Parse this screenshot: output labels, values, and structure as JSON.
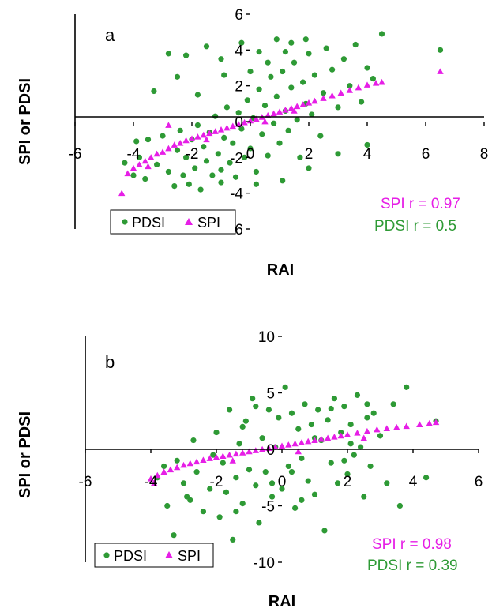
{
  "colors": {
    "pdsi": "#2e9a35",
    "spi": "#e61ee6",
    "axis": "#000000"
  },
  "chart_data": [
    {
      "type": "scatter",
      "panel_label": "a",
      "xlabel": "RAI",
      "ylabel": "SPI or PDSI",
      "xlim": [
        -6,
        8
      ],
      "ylim": [
        -6,
        6
      ],
      "xticks": [
        -6,
        -4,
        -2,
        0,
        2,
        4,
        6,
        8
      ],
      "yticks": [
        -6,
        -4,
        -2,
        0,
        2,
        4,
        6
      ],
      "legend": {
        "position": "bottom-left",
        "entries": [
          "PDSI",
          "SPI"
        ]
      },
      "annotations": [
        "SPI r = 0.97",
        "PDSI r = 0.5"
      ],
      "series": [
        {
          "name": "PDSI",
          "marker": "circle",
          "points": [
            [
              -4.3,
              -2.3
            ],
            [
              -4.0,
              -3.0
            ],
            [
              -3.6,
              -3.2
            ],
            [
              -3.5,
              -1.0
            ],
            [
              -3.2,
              -2.4
            ],
            [
              -3.0,
              -0.8
            ],
            [
              -2.8,
              -2.8
            ],
            [
              -2.6,
              -3.6
            ],
            [
              -2.5,
              -1.6
            ],
            [
              -2.4,
              -0.5
            ],
            [
              -2.3,
              -3.0
            ],
            [
              -2.2,
              -2.0
            ],
            [
              -2.1,
              -3.5
            ],
            [
              -2.0,
              -1.0
            ],
            [
              -1.9,
              -2.6
            ],
            [
              -1.8,
              -0.2
            ],
            [
              -1.7,
              -3.8
            ],
            [
              -1.6,
              -1.4
            ],
            [
              -1.5,
              -2.2
            ],
            [
              -1.4,
              -0.6
            ],
            [
              -1.3,
              -3.0
            ],
            [
              -1.2,
              0.3
            ],
            [
              -1.1,
              -1.8
            ],
            [
              -1.0,
              -2.7
            ],
            [
              -0.9,
              -0.9
            ],
            [
              -0.8,
              0.8
            ],
            [
              -0.7,
              -2.3
            ],
            [
              -0.6,
              -1.2
            ],
            [
              -0.5,
              -3.1
            ],
            [
              -0.4,
              0.5
            ],
            [
              -0.3,
              -0.4
            ],
            [
              -0.2,
              -2.0
            ],
            [
              -0.1,
              1.2
            ],
            [
              0.0,
              -1.5
            ],
            [
              0.1,
              0.2
            ],
            [
              0.2,
              -2.8
            ],
            [
              0.3,
              1.8
            ],
            [
              0.4,
              -0.7
            ],
            [
              0.5,
              0.9
            ],
            [
              0.6,
              -1.9
            ],
            [
              0.7,
              2.5
            ],
            [
              0.8,
              -0.1
            ],
            [
              0.9,
              1.4
            ],
            [
              1.0,
              -1.2
            ],
            [
              1.1,
              2.8
            ],
            [
              1.2,
              0.6
            ],
            [
              1.3,
              -0.5
            ],
            [
              1.4,
              1.9
            ],
            [
              1.5,
              3.3
            ],
            [
              1.6,
              0.1
            ],
            [
              1.7,
              -2.0
            ],
            [
              1.8,
              2.2
            ],
            [
              1.9,
              1.0
            ],
            [
              2.0,
              3.8
            ],
            [
              2.1,
              0.4
            ],
            [
              2.2,
              2.6
            ],
            [
              2.4,
              -0.8
            ],
            [
              2.5,
              1.6
            ],
            [
              2.6,
              4.1
            ],
            [
              2.8,
              2.9
            ],
            [
              3.0,
              0.8
            ],
            [
              3.2,
              3.5
            ],
            [
              3.4,
              2.0
            ],
            [
              3.6,
              4.3
            ],
            [
              3.8,
              1.1
            ],
            [
              4.0,
              3.0
            ],
            [
              4.2,
              2.4
            ],
            [
              4.5,
              4.9
            ],
            [
              -3.3,
              1.7
            ],
            [
              -2.8,
              3.8
            ],
            [
              -2.2,
              3.7
            ],
            [
              -1.5,
              4.2
            ],
            [
              -1.0,
              3.5
            ],
            [
              -0.3,
              4.4
            ],
            [
              0.3,
              3.9
            ],
            [
              0.9,
              4.6
            ],
            [
              1.4,
              4.4
            ],
            [
              1.9,
              4.6
            ],
            [
              -2.5,
              2.5
            ],
            [
              -1.8,
              1.5
            ],
            [
              -0.9,
              2.6
            ],
            [
              0.0,
              2.8
            ],
            [
              0.6,
              3.3
            ],
            [
              1.2,
              3.9
            ],
            [
              -3.8,
              -2.0
            ],
            [
              -3.9,
              -1.1
            ],
            [
              -1.0,
              -3.4
            ],
            [
              0.2,
              -3.5
            ],
            [
              1.1,
              -3.3
            ],
            [
              2.0,
              -2.6
            ],
            [
              3.0,
              -1.8
            ],
            [
              4.0,
              -1.3
            ],
            [
              6.5,
              4.0
            ]
          ]
        },
        {
          "name": "SPI",
          "marker": "triangle",
          "points": [
            [
              -4.4,
              -4.0
            ],
            [
              -4.2,
              -2.9
            ],
            [
              -4.0,
              -2.6
            ],
            [
              -3.8,
              -2.4
            ],
            [
              -3.6,
              -2.2
            ],
            [
              -3.4,
              -2.0
            ],
            [
              -3.2,
              -1.8
            ],
            [
              -3.0,
              -1.7
            ],
            [
              -2.8,
              -1.5
            ],
            [
              -2.6,
              -1.3
            ],
            [
              -2.4,
              -1.2
            ],
            [
              -2.2,
              -1.05
            ],
            [
              -2.0,
              -0.95
            ],
            [
              -1.8,
              -0.85
            ],
            [
              -1.6,
              -0.75
            ],
            [
              -1.4,
              -0.65
            ],
            [
              -1.2,
              -0.55
            ],
            [
              -1.0,
              -0.45
            ],
            [
              -0.8,
              -0.35
            ],
            [
              -0.6,
              -0.25
            ],
            [
              -0.4,
              -0.15
            ],
            [
              -0.2,
              -0.05
            ],
            [
              0.0,
              0.05
            ],
            [
              0.2,
              0.15
            ],
            [
              0.4,
              0.25
            ],
            [
              0.6,
              0.35
            ],
            [
              0.8,
              0.45
            ],
            [
              1.0,
              0.55
            ],
            [
              1.2,
              0.65
            ],
            [
              1.4,
              0.75
            ],
            [
              1.6,
              0.85
            ],
            [
              1.8,
              0.95
            ],
            [
              2.0,
              1.05
            ],
            [
              2.2,
              1.15
            ],
            [
              2.5,
              1.3
            ],
            [
              2.8,
              1.45
            ],
            [
              3.1,
              1.6
            ],
            [
              3.4,
              1.75
            ],
            [
              3.7,
              1.9
            ],
            [
              4.0,
              2.05
            ],
            [
              4.3,
              2.15
            ],
            [
              4.5,
              2.2
            ],
            [
              6.5,
              2.8
            ],
            [
              -2.8,
              -0.2
            ],
            [
              -3.5,
              -2.5
            ],
            [
              -1.5,
              -1.0
            ],
            [
              0.5,
              0.0
            ],
            [
              1.5,
              0.6
            ]
          ]
        }
      ]
    },
    {
      "type": "scatter",
      "panel_label": "b",
      "xlabel": "RAI",
      "ylabel": "SPI or PDSI",
      "xlim": [
        -6,
        6
      ],
      "ylim": [
        -10,
        10
      ],
      "xticks": [
        -6,
        -4,
        -2,
        0,
        2,
        4,
        6
      ],
      "yticks": [
        -10,
        -5,
        0,
        5,
        10
      ],
      "legend": {
        "position": "bottom-left",
        "entries": [
          "PDSI",
          "SPI"
        ]
      },
      "annotations": [
        "SPI r = 0.98",
        "PDSI r = 0.39"
      ],
      "series": [
        {
          "name": "PDSI",
          "marker": "circle",
          "points": [
            [
              -3.8,
              -2.5
            ],
            [
              -3.5,
              -5.0
            ],
            [
              -3.3,
              -7.6
            ],
            [
              -3.2,
              -1.0
            ],
            [
              -3.0,
              -3.0
            ],
            [
              -2.8,
              -4.5
            ],
            [
              -2.6,
              -2.0
            ],
            [
              -2.4,
              -5.5
            ],
            [
              -2.2,
              -3.5
            ],
            [
              -2.0,
              1.5
            ],
            [
              -1.9,
              -6.0
            ],
            [
              -1.8,
              -1.2
            ],
            [
              -1.7,
              -3.8
            ],
            [
              -1.6,
              3.5
            ],
            [
              -1.5,
              -8.0
            ],
            [
              -1.4,
              -2.5
            ],
            [
              -1.3,
              0.5
            ],
            [
              -1.2,
              -4.8
            ],
            [
              -1.1,
              2.5
            ],
            [
              -1.0,
              -1.8
            ],
            [
              -0.9,
              4.5
            ],
            [
              -0.8,
              -3.2
            ],
            [
              -0.7,
              -6.5
            ],
            [
              -0.6,
              1.0
            ],
            [
              -0.5,
              -2.0
            ],
            [
              -0.4,
              3.5
            ],
            [
              -0.3,
              -4.2
            ],
            [
              -0.2,
              0.2
            ],
            [
              -0.1,
              2.8
            ],
            [
              0.0,
              -3.5
            ],
            [
              0.1,
              5.5
            ],
            [
              0.2,
              -1.5
            ],
            [
              0.3,
              3.2
            ],
            [
              0.4,
              -5.2
            ],
            [
              0.5,
              1.8
            ],
            [
              0.6,
              -0.8
            ],
            [
              0.7,
              4.0
            ],
            [
              0.8,
              -2.8
            ],
            [
              0.9,
              2.2
            ],
            [
              1.0,
              -4.0
            ],
            [
              1.1,
              3.5
            ],
            [
              1.2,
              0.8
            ],
            [
              1.3,
              -7.2
            ],
            [
              1.4,
              2.6
            ],
            [
              1.5,
              -1.2
            ],
            [
              1.6,
              4.5
            ],
            [
              1.7,
              -3.0
            ],
            [
              1.8,
              1.5
            ],
            [
              1.9,
              3.8
            ],
            [
              2.0,
              -2.2
            ],
            [
              2.1,
              2.2
            ],
            [
              2.2,
              -0.5
            ],
            [
              2.3,
              4.8
            ],
            [
              2.4,
              0.2
            ],
            [
              2.5,
              -4.2
            ],
            [
              2.6,
              2.8
            ],
            [
              2.7,
              -1.5
            ],
            [
              2.8,
              3.2
            ],
            [
              3.0,
              1.2
            ],
            [
              3.2,
              -3.0
            ],
            [
              3.4,
              4.0
            ],
            [
              3.6,
              -5.0
            ],
            [
              3.8,
              5.5
            ],
            [
              4.4,
              -2.5
            ],
            [
              4.7,
              2.5
            ],
            [
              -3.6,
              -1.5
            ],
            [
              -2.7,
              0.8
            ],
            [
              -2.1,
              -0.5
            ],
            [
              -1.4,
              -5.5
            ],
            [
              -0.3,
              -3.0
            ],
            [
              0.6,
              -4.5
            ],
            [
              1.0,
              1.0
            ],
            [
              1.9,
              -1.0
            ],
            [
              2.6,
              4.0
            ],
            [
              -2.9,
              -4.2
            ],
            [
              -0.8,
              3.8
            ],
            [
              0.3,
              -2.0
            ],
            [
              1.5,
              3.6
            ],
            [
              -1.2,
              2.0
            ],
            [
              2.1,
              0.5
            ]
          ]
        },
        {
          "name": "SPI",
          "marker": "triangle",
          "points": [
            [
              -4.0,
              -2.6
            ],
            [
              -3.8,
              -2.3
            ],
            [
              -3.6,
              -2.0
            ],
            [
              -3.4,
              -1.8
            ],
            [
              -3.2,
              -1.6
            ],
            [
              -3.0,
              -1.4
            ],
            [
              -2.8,
              -1.25
            ],
            [
              -2.6,
              -1.1
            ],
            [
              -2.4,
              -0.95
            ],
            [
              -2.2,
              -0.8
            ],
            [
              -2.0,
              -0.7
            ],
            [
              -1.8,
              -0.6
            ],
            [
              -1.6,
              -0.5
            ],
            [
              -1.4,
              -0.4
            ],
            [
              -1.2,
              -0.3
            ],
            [
              -1.0,
              -0.2
            ],
            [
              -0.8,
              -0.1
            ],
            [
              -0.6,
              0.0
            ],
            [
              -0.4,
              0.1
            ],
            [
              -0.2,
              0.2
            ],
            [
              0.0,
              0.3
            ],
            [
              0.2,
              0.4
            ],
            [
              0.4,
              0.5
            ],
            [
              0.6,
              0.6
            ],
            [
              0.8,
              0.7
            ],
            [
              1.0,
              0.8
            ],
            [
              1.2,
              0.9
            ],
            [
              1.4,
              1.0
            ],
            [
              1.6,
              1.1
            ],
            [
              1.8,
              1.2
            ],
            [
              2.0,
              1.3
            ],
            [
              2.3,
              1.45
            ],
            [
              2.6,
              1.6
            ],
            [
              2.9,
              1.75
            ],
            [
              3.2,
              1.85
            ],
            [
              3.5,
              1.95
            ],
            [
              3.8,
              2.05
            ],
            [
              4.2,
              2.2
            ],
            [
              4.5,
              2.3
            ],
            [
              4.7,
              2.4
            ],
            [
              -3.9,
              -3.0
            ],
            [
              -1.5,
              -1.0
            ],
            [
              0.5,
              -0.2
            ],
            [
              2.5,
              1.0
            ]
          ]
        }
      ]
    }
  ]
}
